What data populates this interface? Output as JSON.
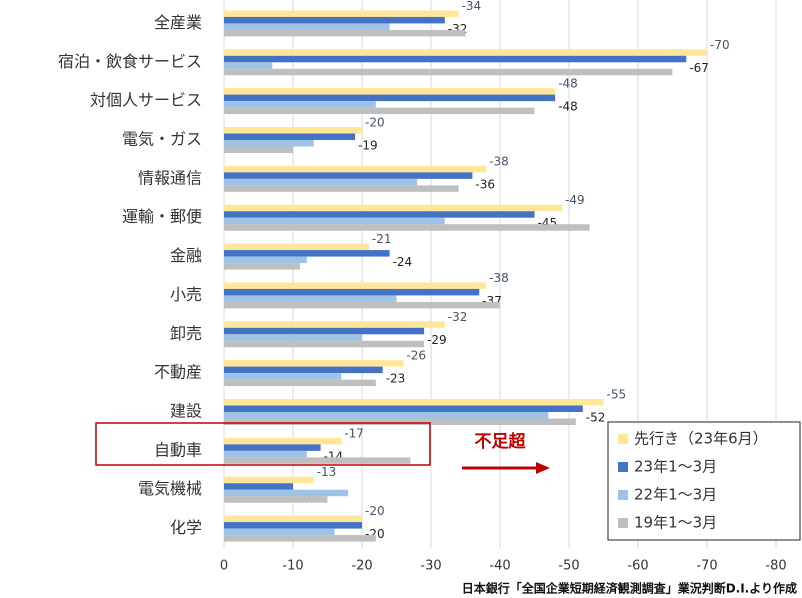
{
  "chart_data": {
    "type": "hbar",
    "categories": [
      "全産業",
      "宿泊・飲食サービス",
      "対個人サービス",
      "電気・ガス",
      "情報通信",
      "運輸・郵便",
      "金融",
      "小売",
      "卸売",
      "不動産",
      "建設",
      "自動車",
      "電気機械",
      "化学"
    ],
    "series": [
      {
        "name": "先行き（23年6月）",
        "color": "#ffe699",
        "label_color": "#44546a",
        "values": [
          -34,
          -70,
          -48,
          -20,
          -38,
          -49,
          -21,
          -38,
          -32,
          -26,
          -55,
          -17,
          -13,
          -20
        ]
      },
      {
        "name": "23年1～3月",
        "color": "#4472c4",
        "label_color": "#222222",
        "values": [
          -32,
          -67,
          -48,
          -19,
          -36,
          -45,
          -24,
          -37,
          -29,
          -23,
          -52,
          -14,
          -10,
          -20
        ]
      },
      {
        "name": "22年1～3月",
        "color": "#9dc3e6",
        "values": [
          -24,
          -7,
          -22,
          -13,
          -28,
          -32,
          -12,
          -25,
          -20,
          -17,
          -47,
          -12,
          -18,
          -16
        ]
      },
      {
        "name": "19年1～3月",
        "color": "#bfbfbf",
        "values": [
          -35,
          -65,
          -45,
          -10,
          -34,
          -53,
          -11,
          -40,
          -29,
          -22,
          -51,
          -27,
          -15,
          -22
        ]
      }
    ],
    "xlim": [
      0,
      -80
    ],
    "xticks": [
      0,
      -10,
      -20,
      -30,
      -40,
      -50,
      -60,
      -70,
      -80
    ],
    "grid": true,
    "legend": "lower-right",
    "annotation": "不足超",
    "source": "日本銀行「全国企業短期経済観測調査」業況判断D.I.より作成"
  }
}
